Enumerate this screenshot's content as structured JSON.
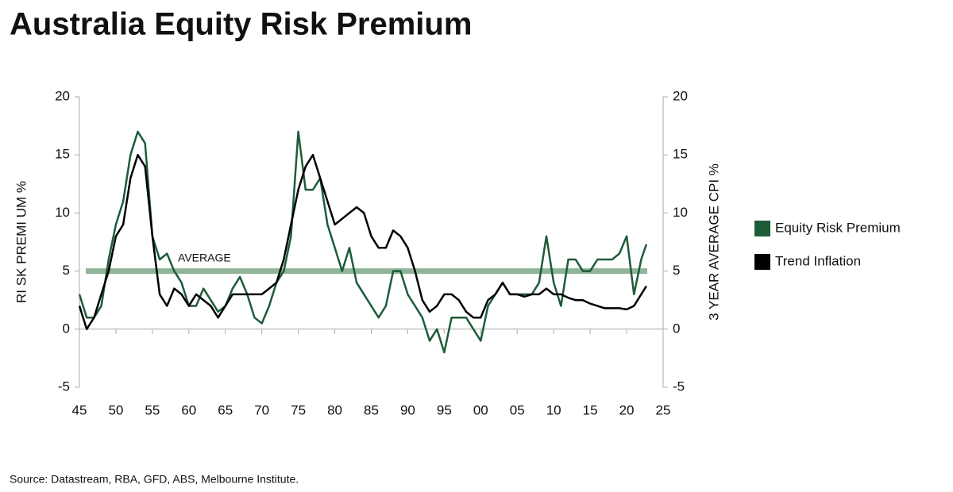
{
  "chart_data": {
    "type": "line",
    "title": "Australia Equity Risk Premium",
    "y_label": "RI SK PREMI UM %",
    "y2_label": "3 YEAR AVERAGE CPI %",
    "source": "Source:  Datastream, RBA, GFD, ABS, Melbourne Institute.",
    "average": 5,
    "average_label": "AVERAGE",
    "average_color": "#8fb49a",
    "x": [
      1945,
      1946,
      1947,
      1948,
      1949,
      1950,
      1951,
      1952,
      1953,
      1954,
      1955,
      1956,
      1957,
      1958,
      1959,
      1960,
      1961,
      1962,
      1963,
      1964,
      1965,
      1966,
      1967,
      1968,
      1969,
      1970,
      1971,
      1972,
      1973,
      1974,
      1975,
      1976,
      1977,
      1978,
      1979,
      1980,
      1981,
      1982,
      1983,
      1984,
      1985,
      1986,
      1987,
      1988,
      1989,
      1990,
      1991,
      1992,
      1993,
      1994,
      1995,
      1996,
      1997,
      1998,
      1999,
      2000,
      2001,
      2002,
      2003,
      2004,
      2005,
      2006,
      2007,
      2008,
      2009,
      2010,
      2011,
      2012,
      2013,
      2014,
      2015,
      2016,
      2017,
      2018,
      2019,
      2020,
      2021,
      2022,
      2022.7
    ],
    "series": [
      {
        "name": "Equity Risk Premium",
        "color": "#1e5c38",
        "values": [
          3,
          1,
          1,
          2,
          6,
          9,
          11,
          15,
          17,
          16,
          8,
          6,
          6.5,
          5,
          4,
          2,
          2,
          3.5,
          2.5,
          1.5,
          2,
          3.5,
          4.5,
          3,
          1,
          0.5,
          2,
          4,
          5,
          8,
          17,
          12,
          12,
          13,
          9,
          7,
          5,
          7,
          4,
          3,
          2,
          1,
          2,
          5,
          5,
          3,
          2,
          1,
          -1,
          0,
          -2,
          1,
          1,
          1,
          0,
          -1,
          2,
          3,
          4,
          3,
          3,
          3,
          3,
          4,
          8,
          4,
          2,
          6,
          6,
          5,
          5,
          6,
          6,
          6,
          6.5,
          8,
          3,
          6,
          7.3
        ]
      },
      {
        "name": "Trend Inflation",
        "color": "#000000",
        "axis": "y2",
        "values": [
          2,
          0,
          1,
          3,
          5,
          8,
          9,
          13,
          15,
          14,
          8,
          3,
          2,
          3.5,
          3,
          2,
          3,
          2.5,
          2,
          1,
          2,
          3,
          3,
          3,
          3,
          3,
          3.5,
          4,
          6,
          9,
          12,
          14,
          15,
          13,
          11,
          9,
          9.5,
          10,
          10.5,
          10,
          8,
          7,
          7,
          8.5,
          8,
          7,
          5,
          2.5,
          1.5,
          2,
          3,
          3,
          2.5,
          1.5,
          1,
          1,
          2.5,
          3,
          4,
          3,
          3,
          2.8,
          3,
          3,
          3.5,
          3,
          3,
          2.7,
          2.5,
          2.5,
          2.2,
          2,
          1.8,
          1.8,
          1.8,
          1.7,
          2,
          3,
          3.7
        ]
      }
    ],
    "xlim": [
      1945,
      2025
    ],
    "xticks": [
      {
        "value": 1945,
        "label": "45"
      },
      {
        "value": 1950,
        "label": "50"
      },
      {
        "value": 1955,
        "label": "55"
      },
      {
        "value": 1960,
        "label": "60"
      },
      {
        "value": 1965,
        "label": "65"
      },
      {
        "value": 1970,
        "label": "70"
      },
      {
        "value": 1975,
        "label": "75"
      },
      {
        "value": 1980,
        "label": "80"
      },
      {
        "value": 1985,
        "label": "85"
      },
      {
        "value": 1990,
        "label": "90"
      },
      {
        "value": 1995,
        "label": "95"
      },
      {
        "value": 2000,
        "label": "00"
      },
      {
        "value": 2005,
        "label": "05"
      },
      {
        "value": 2010,
        "label": "10"
      },
      {
        "value": 2015,
        "label": "15"
      },
      {
        "value": 2020,
        "label": "20"
      },
      {
        "value": 2025,
        "label": "25"
      }
    ],
    "ylim": [
      -5,
      20
    ],
    "yticks": [
      -5,
      0,
      5,
      10,
      15,
      20
    ],
    "y2lim": [
      -5,
      20
    ],
    "y2ticks": [
      -5,
      0,
      5,
      10,
      15,
      20
    ]
  }
}
